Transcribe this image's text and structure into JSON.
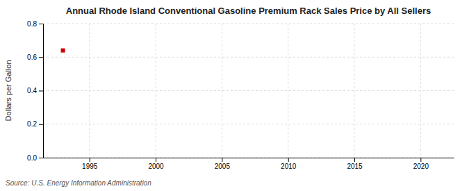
{
  "chart_data": {
    "type": "scatter",
    "title": "Annual Rhode Island Conventional Gasoline Premium Rack Sales Price by All Sellers",
    "ylabel": "Dollars per Gallon",
    "annotations": [
      "Source: U.S. Energy Information Administration"
    ],
    "x": [
      1993
    ],
    "values": [
      0.64
    ],
    "color": "#cc0000",
    "marker": "square",
    "xlim": [
      1991.5,
      2022.5
    ],
    "xticks": [
      1995,
      2000,
      2005,
      2010,
      2015,
      2020
    ],
    "ylim": [
      0.0,
      0.8
    ],
    "yticks": [
      {
        "value": 0.0,
        "label": "0.0"
      },
      0.2,
      0.4,
      0.6,
      0.8
    ],
    "grid": true
  }
}
